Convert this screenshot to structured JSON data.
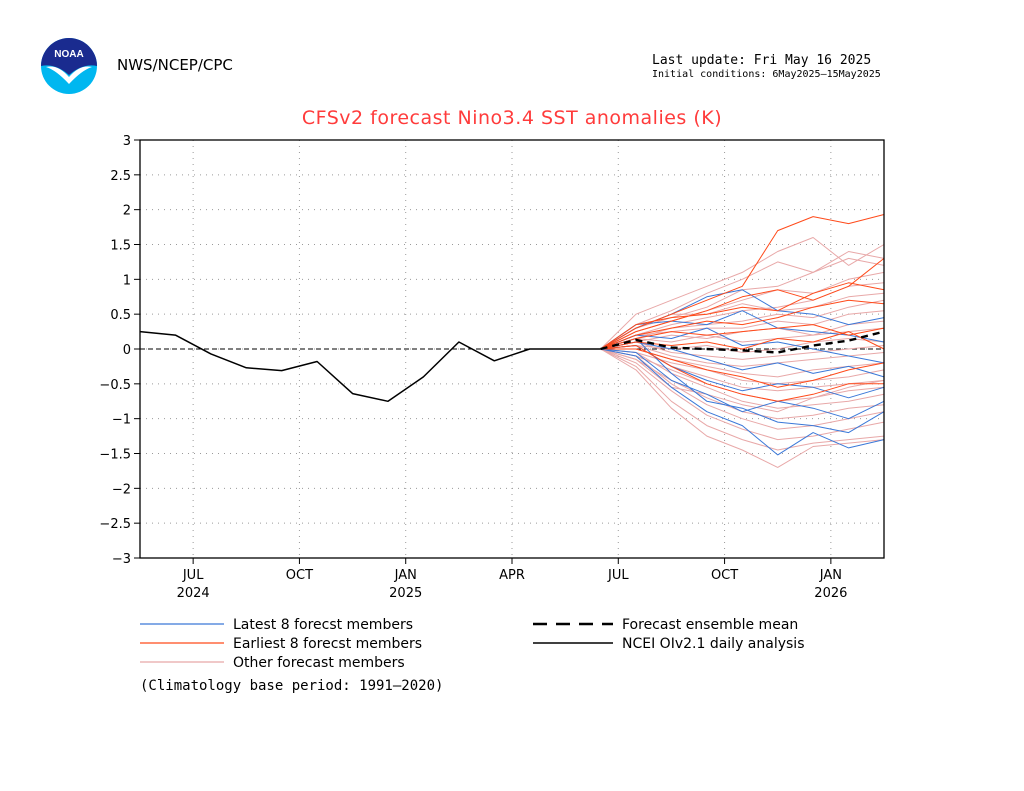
{
  "header": {
    "agency": "NWS/NCEP/CPC",
    "last_update": "Last update: Fri May 16 2025",
    "initial_conditions": "Initial conditions: 6May2025–15May2025",
    "logo_text": "NOAA"
  },
  "chart_data": {
    "type": "line",
    "title": "CFSv2 forecast Nino3.4 SST anomalies (K)",
    "ylim": [
      -3,
      3
    ],
    "yticks": [
      3,
      2.5,
      2,
      1.5,
      1,
      0.5,
      0,
      -0.5,
      -1,
      -1.5,
      -2,
      -2.5,
      -3
    ],
    "ytick_labels": [
      "3",
      "2.5",
      "2",
      "1.5",
      "1",
      "0.5",
      "0",
      "−0.5",
      "−1",
      "−1.5",
      "−2",
      "−2.5",
      "−3"
    ],
    "xlim": [
      5.5,
      26.5
    ],
    "xticks": [
      {
        "month_index": 7,
        "label": "JUL",
        "year": "2024"
      },
      {
        "month_index": 10,
        "label": "OCT",
        "year": ""
      },
      {
        "month_index": 13,
        "label": "JAN",
        "year": "2025"
      },
      {
        "month_index": 16,
        "label": "APR",
        "year": ""
      },
      {
        "month_index": 19,
        "label": "JUL",
        "year": ""
      },
      {
        "month_index": 22,
        "label": "OCT",
        "year": ""
      },
      {
        "month_index": 25,
        "label": "JAN",
        "year": "2026"
      }
    ],
    "grid": true,
    "zero_line": true,
    "analysis": {
      "name": "NCEI OIv2.1 daily analysis",
      "color": "#000000",
      "x": [
        5.5,
        6.5,
        7.5,
        8.5,
        9.5,
        10.5,
        11.5,
        12.5,
        13.5,
        14.5,
        15.5,
        16.5,
        17.5,
        18.5
      ],
      "y": [
        0.25,
        0.2,
        -0.07,
        -0.27,
        -0.31,
        -0.18,
        -0.64,
        -0.75,
        -0.4,
        0.1,
        -0.17,
        0.0,
        0.0,
        0.0
      ]
    },
    "ensemble_mean": {
      "name": "Forecast ensemble mean",
      "color": "#000000",
      "x": [
        18.5,
        19.5,
        20.5,
        21.5,
        22.5,
        23.5,
        24.5,
        25.5,
        26.5
      ],
      "y": [
        0.0,
        0.13,
        0.02,
        0.0,
        -0.02,
        -0.05,
        0.05,
        0.12,
        0.25
      ]
    },
    "groups": [
      {
        "name": "Other forecast members",
        "color": "#e8a8a8",
        "x": [
          18.5,
          19.5,
          20.5,
          21.5,
          22.5,
          23.5,
          24.5,
          25.5,
          26.5
        ],
        "members": [
          [
            0.0,
            0.5,
            0.7,
            0.9,
            1.1,
            1.4,
            1.6,
            1.2,
            1.5
          ],
          [
            0.0,
            0.35,
            0.55,
            0.8,
            1.0,
            1.25,
            1.1,
            1.4,
            1.3
          ],
          [
            0.0,
            0.3,
            0.45,
            0.6,
            0.85,
            0.9,
            1.1,
            1.3,
            1.2
          ],
          [
            0.0,
            0.25,
            0.4,
            0.55,
            0.7,
            0.85,
            0.8,
            1.0,
            1.1
          ],
          [
            0.0,
            0.2,
            0.35,
            0.45,
            0.55,
            0.6,
            0.7,
            0.9,
            0.95
          ],
          [
            0.0,
            0.3,
            0.5,
            0.5,
            0.65,
            0.55,
            0.6,
            0.75,
            0.8
          ],
          [
            0.0,
            0.15,
            0.3,
            0.35,
            0.4,
            0.5,
            0.45,
            0.6,
            0.7
          ],
          [
            0.0,
            0.2,
            0.25,
            0.3,
            0.3,
            0.4,
            0.35,
            0.5,
            0.55
          ],
          [
            0.0,
            0.1,
            0.2,
            0.15,
            0.25,
            0.3,
            0.2,
            0.35,
            0.4
          ],
          [
            0.0,
            0.15,
            0.1,
            0.2,
            0.1,
            0.15,
            0.2,
            0.25,
            0.3
          ],
          [
            0.0,
            0.05,
            0.0,
            0.05,
            -0.05,
            0.0,
            0.1,
            0.15,
            0.1
          ],
          [
            0.0,
            0.1,
            -0.05,
            -0.1,
            -0.15,
            -0.1,
            -0.05,
            0.0,
            0.05
          ],
          [
            0.0,
            0.05,
            -0.1,
            -0.2,
            -0.25,
            -0.2,
            -0.15,
            -0.1,
            -0.05
          ],
          [
            0.0,
            0.0,
            -0.15,
            -0.25,
            -0.35,
            -0.4,
            -0.3,
            -0.25,
            -0.2
          ],
          [
            0.0,
            -0.05,
            -0.2,
            -0.3,
            -0.45,
            -0.5,
            -0.45,
            -0.4,
            -0.3
          ],
          [
            0.0,
            0.05,
            -0.25,
            -0.4,
            -0.55,
            -0.6,
            -0.55,
            -0.5,
            -0.45
          ],
          [
            0.0,
            -0.1,
            -0.3,
            -0.5,
            -0.65,
            -0.75,
            -0.7,
            -0.6,
            -0.55
          ],
          [
            0.0,
            -0.05,
            -0.35,
            -0.55,
            -0.75,
            -0.85,
            -0.8,
            -0.75,
            -0.65
          ],
          [
            0.0,
            -0.15,
            -0.45,
            -0.7,
            -0.9,
            -1.0,
            -0.95,
            -0.85,
            -0.8
          ],
          [
            0.0,
            -0.1,
            -0.5,
            -0.8,
            -1.0,
            -1.15,
            -1.1,
            -1.0,
            -0.9
          ],
          [
            0.0,
            -0.2,
            -0.6,
            -0.95,
            -1.15,
            -1.3,
            -1.25,
            -1.15,
            -1.05
          ],
          [
            0.0,
            -0.25,
            -0.75,
            -1.1,
            -1.3,
            -1.45,
            -1.35,
            -1.3,
            -1.25
          ],
          [
            0.0,
            -0.3,
            -0.85,
            -1.25,
            -1.45,
            -1.7,
            -1.4,
            -1.35,
            -1.3
          ],
          [
            0.0,
            -0.15,
            -0.55,
            -0.65,
            -0.8,
            -0.9,
            -0.7,
            -0.55,
            -0.45
          ]
        ]
      },
      {
        "name": "Latest 8 forecest members",
        "color": "#3a78d8",
        "x": [
          18.5,
          19.5,
          20.5,
          21.5,
          22.5,
          23.5,
          24.5,
          25.5,
          26.5
        ],
        "members": [
          [
            0.0,
            0.3,
            0.5,
            0.75,
            0.85,
            0.55,
            0.5,
            0.35,
            0.45
          ],
          [
            0.0,
            0.35,
            0.4,
            0.35,
            0.55,
            0.3,
            0.25,
            0.2,
            0.1
          ],
          [
            0.0,
            0.2,
            0.15,
            0.3,
            0.05,
            0.1,
            0.0,
            -0.1,
            -0.2
          ],
          [
            0.0,
            0.1,
            0.0,
            -0.15,
            -0.3,
            -0.2,
            -0.35,
            -0.25,
            -0.4
          ],
          [
            0.0,
            0.05,
            -0.25,
            -0.45,
            -0.6,
            -0.5,
            -0.55,
            -0.7,
            -0.55
          ],
          [
            0.0,
            -0.05,
            -0.45,
            -0.65,
            -0.9,
            -0.75,
            -0.85,
            -1.0,
            -0.75
          ],
          [
            0.0,
            0.15,
            -0.35,
            -0.75,
            -0.85,
            -1.05,
            -1.1,
            -1.2,
            -0.9
          ],
          [
            0.0,
            -0.1,
            -0.55,
            -0.9,
            -1.1,
            -1.52,
            -1.2,
            -1.42,
            -1.3
          ]
        ]
      },
      {
        "name": "Earliest 8 forecst members",
        "color": "#ff4a1a",
        "x": [
          18.5,
          19.5,
          20.5,
          21.5,
          22.5,
          23.5,
          24.5,
          25.5,
          26.5
        ],
        "members": [
          [
            0.0,
            0.3,
            0.5,
            0.7,
            0.9,
            1.7,
            1.9,
            1.8,
            1.93
          ],
          [
            0.0,
            0.25,
            0.4,
            0.55,
            0.75,
            0.85,
            0.7,
            0.9,
            1.3
          ],
          [
            0.0,
            0.35,
            0.45,
            0.5,
            0.6,
            0.55,
            0.8,
            0.95,
            0.85
          ],
          [
            0.0,
            0.2,
            0.3,
            0.4,
            0.35,
            0.45,
            0.6,
            0.7,
            0.65
          ],
          [
            0.0,
            0.15,
            0.25,
            0.2,
            0.25,
            0.3,
            0.35,
            0.2,
            0.3
          ],
          [
            0.0,
            0.1,
            0.05,
            0.1,
            0.0,
            0.15,
            0.1,
            0.25,
            0.0
          ],
          [
            0.0,
            0.0,
            -0.15,
            -0.3,
            -0.4,
            -0.55,
            -0.45,
            -0.3,
            -0.2
          ],
          [
            0.0,
            0.05,
            -0.25,
            -0.5,
            -0.65,
            -0.75,
            -0.65,
            -0.5,
            -0.5
          ]
        ]
      }
    ],
    "legend": {
      "placement": "bottom",
      "items": [
        {
          "label": "Latest 8 forecst members",
          "color": "#3a78d8",
          "style": "solid"
        },
        {
          "label": "Earliest 8 forecst members",
          "color": "#ff4a1a",
          "style": "solid"
        },
        {
          "label": "Other forecast members",
          "color": "#e8a8a8",
          "style": "solid"
        },
        {
          "label": "Forecast ensemble mean",
          "color": "#000000",
          "style": "dashed"
        },
        {
          "label": "NCEI OIv2.1 daily analysis",
          "color": "#000000",
          "style": "solid"
        }
      ]
    },
    "footnote": "(Climatology base period: 1991—2020)"
  }
}
